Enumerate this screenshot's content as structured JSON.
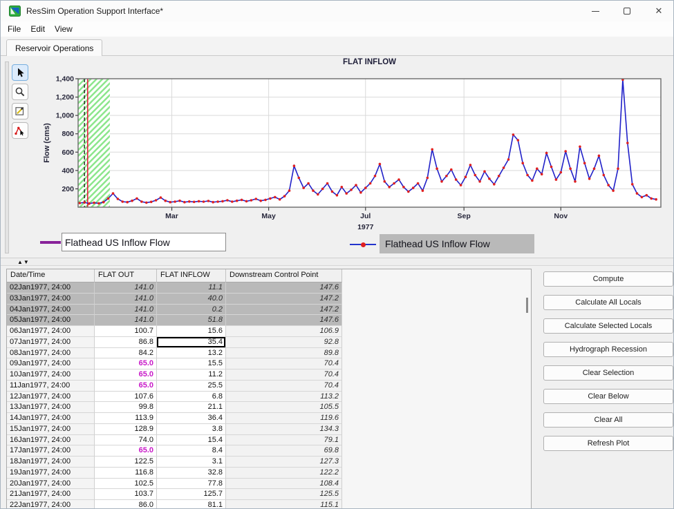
{
  "window": {
    "title": "ResSim Operation Support Interface*",
    "controls": {
      "minimize": "minimize",
      "maximize": "maximize",
      "close": "✕"
    }
  },
  "menu": {
    "items": [
      {
        "label": "File"
      },
      {
        "label": "Edit"
      },
      {
        "label": "View"
      }
    ]
  },
  "tabs": [
    {
      "label": "Reservoir Operations",
      "active": true
    }
  ],
  "toolbar": {
    "tools": [
      {
        "name": "pointer-tool",
        "selected": true
      },
      {
        "name": "zoom-tool",
        "selected": false
      },
      {
        "name": "edit-tool",
        "selected": false
      },
      {
        "name": "vertex-edit-tool",
        "selected": false
      }
    ]
  },
  "chart_data": {
    "type": "line",
    "title": "FLAT INFLOW",
    "ylabel": "Flow (cms)",
    "year_label": "1977",
    "ylim": [
      0,
      1400
    ],
    "xlim_days": [
      1,
      368
    ],
    "grid": true,
    "legend_position": "below",
    "y_ticks": [
      {
        "value": 200,
        "label": "200"
      },
      {
        "value": 400,
        "label": "400"
      },
      {
        "value": 600,
        "label": "600"
      },
      {
        "value": 800,
        "label": "800"
      },
      {
        "value": 1000,
        "label": "1,000"
      },
      {
        "value": 1200,
        "label": "1,200"
      },
      {
        "value": 1400,
        "label": "1,400"
      }
    ],
    "x_ticks": [
      {
        "day": 60,
        "label": "Mar"
      },
      {
        "day": 121,
        "label": "May"
      },
      {
        "day": 182,
        "label": "Jul"
      },
      {
        "day": 244,
        "label": "Sep"
      },
      {
        "day": 305,
        "label": "Nov"
      }
    ],
    "annotations": {
      "hatch_region_days": [
        1,
        21
      ],
      "hatch_color": "#8ce68c",
      "dashed_vline_day": 5,
      "dashed_vline_color": "#222222",
      "solid_vline_day": 7,
      "solid_vline_color": "#e8203a"
    },
    "series": [
      {
        "name": "Flathead US Inflow Flow",
        "line_color": "#2020c8",
        "marker_color": "#e02020",
        "sampling_note": "approximate values read from plot at 3-day intervals",
        "start_day": 2,
        "step_days": 3,
        "values": [
          45,
          52,
          40,
          48,
          42,
          55,
          95,
          150,
          90,
          60,
          55,
          70,
          95,
          60,
          50,
          58,
          75,
          105,
          70,
          55,
          60,
          70,
          55,
          62,
          58,
          65,
          60,
          68,
          55,
          60,
          65,
          75,
          60,
          70,
          80,
          65,
          75,
          90,
          70,
          80,
          95,
          110,
          85,
          120,
          180,
          450,
          320,
          210,
          260,
          180,
          140,
          200,
          260,
          170,
          130,
          220,
          150,
          190,
          240,
          160,
          210,
          260,
          340,
          470,
          280,
          220,
          260,
          300,
          220,
          170,
          210,
          260,
          180,
          320,
          630,
          420,
          280,
          340,
          410,
          300,
          240,
          330,
          460,
          350,
          280,
          390,
          310,
          250,
          340,
          430,
          520,
          790,
          730,
          480,
          350,
          290,
          420,
          360,
          590,
          440,
          300,
          380,
          610,
          420,
          280,
          660,
          480,
          310,
          420,
          560,
          350,
          240,
          180,
          420,
          1390,
          700,
          250,
          150,
          110,
          130,
          95,
          85
        ]
      }
    ]
  },
  "legend": [
    {
      "label": "Flathead US Inflow Flow",
      "swatch": "purple-line",
      "background": "white"
    },
    {
      "label": "Flathead US Inflow Flow",
      "swatch": "blue-line-red-marker",
      "background": "gray"
    }
  ],
  "table": {
    "columns": [
      "Date/Time",
      "FLAT OUT",
      "FLAT INFLOW",
      "Downstream Control Point"
    ],
    "rows": [
      {
        "date": "02Jan1977, 24:00",
        "flat_out": "141.0",
        "flat_inflow": "11.1",
        "dcp": "147.6",
        "selected": true,
        "flat_out_magenta": false,
        "active_cell": null
      },
      {
        "date": "03Jan1977, 24:00",
        "flat_out": "141.0",
        "flat_inflow": "40.0",
        "dcp": "147.2",
        "selected": true,
        "flat_out_magenta": false,
        "active_cell": null
      },
      {
        "date": "04Jan1977, 24:00",
        "flat_out": "141.0",
        "flat_inflow": "0.2",
        "dcp": "147.2",
        "selected": true,
        "flat_out_magenta": false,
        "active_cell": null
      },
      {
        "date": "05Jan1977, 24:00",
        "flat_out": "141.0",
        "flat_inflow": "51.8",
        "dcp": "147.6",
        "selected": true,
        "flat_out_magenta": false,
        "active_cell": null
      },
      {
        "date": "06Jan1977, 24:00",
        "flat_out": "100.7",
        "flat_inflow": "15.6",
        "dcp": "106.9",
        "selected": false,
        "flat_out_magenta": false,
        "active_cell": null
      },
      {
        "date": "07Jan1977, 24:00",
        "flat_out": "86.8",
        "flat_inflow": "35.4",
        "dcp": "92.8",
        "selected": false,
        "flat_out_magenta": false,
        "active_cell": "flat_inflow"
      },
      {
        "date": "08Jan1977, 24:00",
        "flat_out": "84.2",
        "flat_inflow": "13.2",
        "dcp": "89.8",
        "selected": false,
        "flat_out_magenta": false,
        "active_cell": null
      },
      {
        "date": "09Jan1977, 24:00",
        "flat_out": "65.0",
        "flat_inflow": "15.5",
        "dcp": "70.4",
        "selected": false,
        "flat_out_magenta": true,
        "active_cell": null
      },
      {
        "date": "10Jan1977, 24:00",
        "flat_out": "65.0",
        "flat_inflow": "11.2",
        "dcp": "70.4",
        "selected": false,
        "flat_out_magenta": true,
        "active_cell": null
      },
      {
        "date": "11Jan1977, 24:00",
        "flat_out": "65.0",
        "flat_inflow": "25.5",
        "dcp": "70.4",
        "selected": false,
        "flat_out_magenta": true,
        "active_cell": null
      },
      {
        "date": "12Jan1977, 24:00",
        "flat_out": "107.6",
        "flat_inflow": "6.8",
        "dcp": "113.2",
        "selected": false,
        "flat_out_magenta": false,
        "active_cell": null
      },
      {
        "date": "13Jan1977, 24:00",
        "flat_out": "99.8",
        "flat_inflow": "21.1",
        "dcp": "105.5",
        "selected": false,
        "flat_out_magenta": false,
        "active_cell": null
      },
      {
        "date": "14Jan1977, 24:00",
        "flat_out": "113.9",
        "flat_inflow": "36.4",
        "dcp": "119.6",
        "selected": false,
        "flat_out_magenta": false,
        "active_cell": null
      },
      {
        "date": "15Jan1977, 24:00",
        "flat_out": "128.9",
        "flat_inflow": "3.8",
        "dcp": "134.3",
        "selected": false,
        "flat_out_magenta": false,
        "active_cell": null
      },
      {
        "date": "16Jan1977, 24:00",
        "flat_out": "74.0",
        "flat_inflow": "15.4",
        "dcp": "79.1",
        "selected": false,
        "flat_out_magenta": false,
        "active_cell": null
      },
      {
        "date": "17Jan1977, 24:00",
        "flat_out": "65.0",
        "flat_inflow": "8.4",
        "dcp": "69.8",
        "selected": false,
        "flat_out_magenta": true,
        "active_cell": null
      },
      {
        "date": "18Jan1977, 24:00",
        "flat_out": "122.5",
        "flat_inflow": "3.1",
        "dcp": "127.3",
        "selected": false,
        "flat_out_magenta": false,
        "active_cell": null
      },
      {
        "date": "19Jan1977, 24:00",
        "flat_out": "116.8",
        "flat_inflow": "32.8",
        "dcp": "122.2",
        "selected": false,
        "flat_out_magenta": false,
        "active_cell": null
      },
      {
        "date": "20Jan1977, 24:00",
        "flat_out": "102.5",
        "flat_inflow": "77.8",
        "dcp": "108.4",
        "selected": false,
        "flat_out_magenta": false,
        "active_cell": null
      },
      {
        "date": "21Jan1977, 24:00",
        "flat_out": "103.7",
        "flat_inflow": "125.7",
        "dcp": "125.5",
        "selected": false,
        "flat_out_magenta": false,
        "active_cell": null
      },
      {
        "date": "22Jan1977, 24:00",
        "flat_out": "86.0",
        "flat_inflow": "81.1",
        "dcp": "115.1",
        "selected": false,
        "flat_out_magenta": false,
        "active_cell": null
      }
    ]
  },
  "actions": {
    "buttons": [
      "Compute",
      "Calculate All Locals",
      "Calculate Selected Locals",
      "Hydrograph Recession",
      "Clear Selection",
      "Clear Below",
      "Clear All",
      "Refresh Plot"
    ]
  },
  "colors": {
    "accent_selection": "#b9b9b9",
    "magenta_value": "#c818c8",
    "line_blue": "#2020c8",
    "marker_red": "#e02020",
    "hatch_green": "#8ce68c",
    "legend_purple": "#882299"
  }
}
